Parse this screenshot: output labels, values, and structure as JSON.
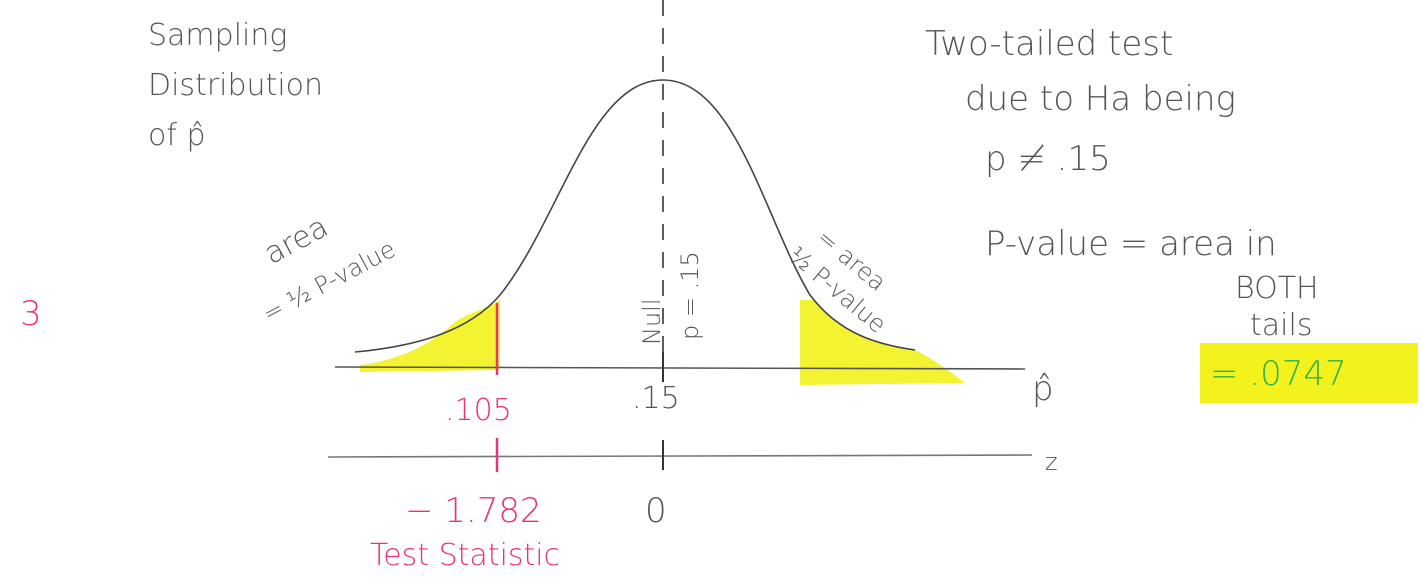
{
  "page_number": "3",
  "title": {
    "lines": [
      "Sampling",
      "Distribution",
      "of p̂"
    ]
  },
  "notes": {
    "test_type": [
      "Two-tailed test",
      "due to Ha being",
      "p ≠ .15"
    ],
    "p_value": [
      "P-value = area in",
      "BOTH",
      "tails"
    ],
    "result": "= .0747"
  },
  "tail_labels": {
    "left": [
      "area",
      "= ½ P-value"
    ],
    "right": [
      "= area",
      "½ P-value"
    ]
  },
  "null_label": [
    "Null",
    "p = .15"
  ],
  "p_hat_axis": {
    "ticks": [
      ".105",
      ".15"
    ],
    "label": "p̂"
  },
  "z_axis": {
    "ticks": [
      "− 1.782",
      "0"
    ],
    "label": "z"
  },
  "test_statistic_label": "Test Statistic"
}
